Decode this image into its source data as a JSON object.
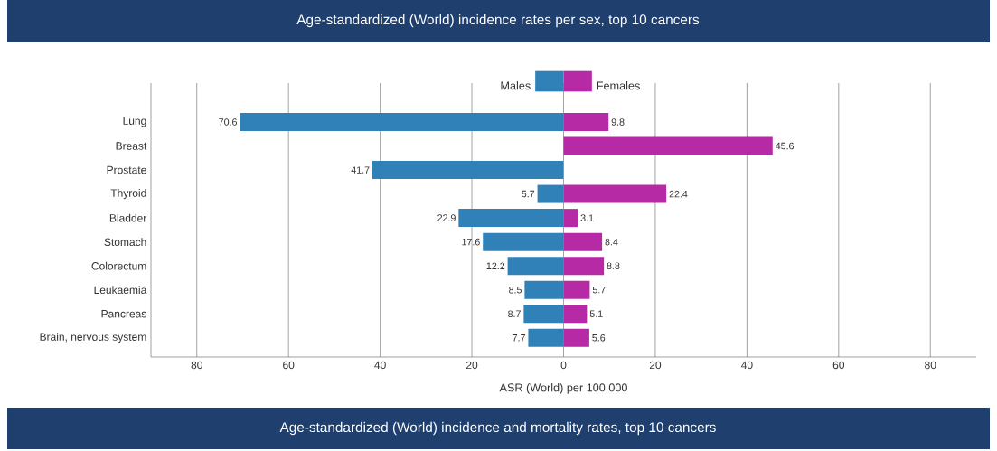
{
  "chart_data": [
    {
      "type": "bar",
      "orientation": "horizontal",
      "title": "Age-standardized (World) incidence rates per sex, top 10 cancers",
      "xlabel": "ASR (World) per 100 000",
      "categories": [
        "Lung",
        "Breast",
        "Prostate",
        "Thyroid",
        "Bladder",
        "Stomach",
        "Colorectum",
        "Leukaemia",
        "Pancreas",
        "Brain, nervous system"
      ],
      "series": [
        {
          "name": "Males",
          "color": "#3181b9",
          "values": [
            70.6,
            null,
            41.7,
            5.7,
            22.9,
            17.6,
            12.2,
            8.5,
            8.7,
            7.7
          ]
        }
      ],
      "xlim": [
        90,
        0
      ],
      "xticks": [
        80,
        60,
        40,
        20
      ],
      "grid": "x",
      "legend": "top right",
      "data_labels": true
    },
    {
      "type": "bar",
      "orientation": "horizontal",
      "categories": [
        null,
        null,
        null,
        null,
        null,
        null,
        null,
        null,
        null,
        null
      ],
      "series": [
        {
          "name": "Females",
          "color": "#b62aa5",
          "values": [
            9.8,
            45.6,
            null,
            22.4,
            3.1,
            8.4,
            8.8,
            5.7,
            5.1,
            5.6
          ]
        }
      ],
      "xlim": [
        0,
        90
      ],
      "xticks": [
        0,
        20,
        40,
        60,
        80
      ],
      "grid": "x",
      "legend": "top left",
      "data_labels": true,
      "tick_labels": "x",
      "annotations": [
        "Age-standardized (World) incidence and mortality rates, top 10 cancers"
      ]
    }
  ]
}
